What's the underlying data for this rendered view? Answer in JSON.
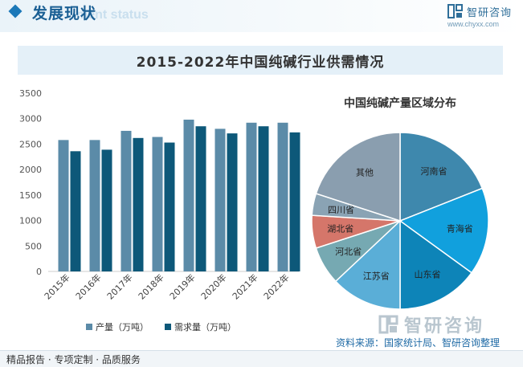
{
  "header": {
    "title": "发展现状",
    "watermark_text": "ment status"
  },
  "brand": {
    "name": "智研咨询",
    "url": "www.chyxx.com"
  },
  "main_title": "2015-2022年中国纯碱行业供需情况",
  "bar_chart": {
    "chart_data": {
      "type": "bar",
      "categories": [
        "2015年",
        "2016年",
        "2017年",
        "2018年",
        "2019年",
        "2020年",
        "2021年",
        "2022年"
      ],
      "series": [
        {
          "name": "产量（万吨）",
          "color": "#5b8ba8",
          "values": [
            2580,
            2580,
            2760,
            2640,
            2980,
            2800,
            2920,
            2920
          ]
        },
        {
          "name": "需求量（万吨）",
          "color": "#0d5879",
          "values": [
            2360,
            2390,
            2620,
            2530,
            2850,
            2710,
            2850,
            2730
          ]
        }
      ],
      "yticks": [
        0,
        500,
        1000,
        1500,
        2000,
        2500,
        3000,
        3500
      ],
      "ylim": [
        0,
        3500
      ],
      "title": "",
      "xlabel": "",
      "ylabel": ""
    }
  },
  "pie_chart": {
    "chart_data": {
      "type": "pie",
      "title": "中国纯碱产量区域分布",
      "slices": [
        {
          "label": "河南省",
          "value": 19,
          "color": "#3e88ad"
        },
        {
          "label": "青海省",
          "value": 16,
          "color": "#11a0dd"
        },
        {
          "label": "山东省",
          "value": 15,
          "color": "#0d84b8"
        },
        {
          "label": "江苏省",
          "value": 13,
          "color": "#5aaed7"
        },
        {
          "label": "河北省",
          "value": 7,
          "color": "#76a9b2"
        },
        {
          "label": "湖北省",
          "value": 6,
          "color": "#d5766a"
        },
        {
          "label": "四川省",
          "value": 4,
          "color": "#8aa3b4"
        },
        {
          "label": "其他",
          "value": 20,
          "color": "#8a9eaf"
        }
      ]
    }
  },
  "footer": {
    "left": "精品报告 · 专项定制 · 品质服务",
    "source": "资料来源：国家统计局、智研咨询整理",
    "watermark": "智研咨询"
  }
}
